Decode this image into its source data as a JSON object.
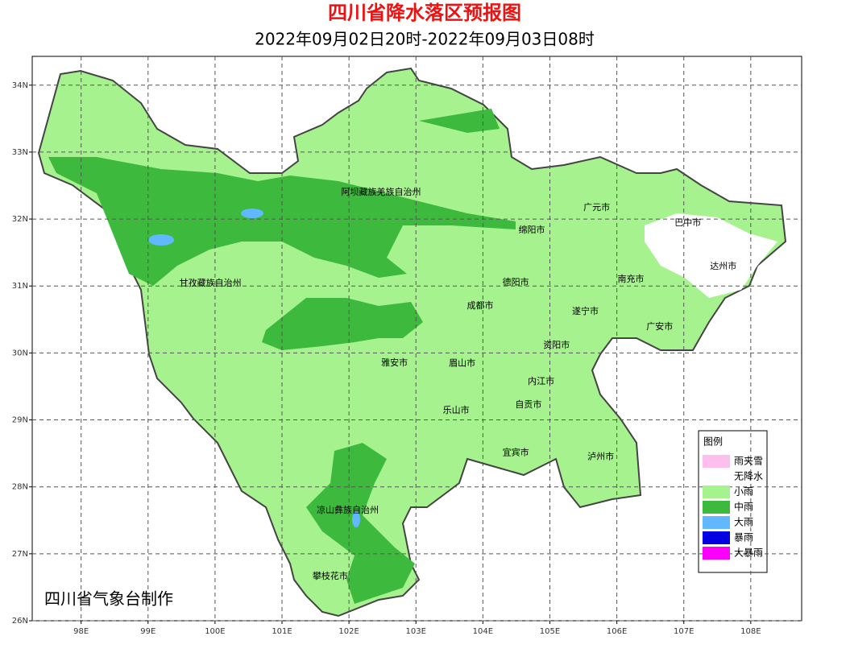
{
  "map": {
    "title": "四川省降水落区预报图",
    "subtitle": "2022年09月02日20时-2022年09月03日08时",
    "credit": "四川省气象台制作",
    "xlim": [
      97.27,
      108.76
    ],
    "ylim": [
      26,
      34.43
    ],
    "xticks": [
      {
        "value": 98,
        "label": "98E"
      },
      {
        "value": 99,
        "label": "99E"
      },
      {
        "value": 100,
        "label": "100E"
      },
      {
        "value": 101,
        "label": "101E"
      },
      {
        "value": 102,
        "label": "102E"
      },
      {
        "value": 103,
        "label": "103E"
      },
      {
        "value": 104,
        "label": "104E"
      },
      {
        "value": 105,
        "label": "105E"
      },
      {
        "value": 106,
        "label": "106E"
      },
      {
        "value": 107,
        "label": "107E"
      },
      {
        "value": 108,
        "label": "108E"
      }
    ],
    "yticks": [
      {
        "value": 26,
        "label": "26N"
      },
      {
        "value": 27,
        "label": "27N"
      },
      {
        "value": 28,
        "label": "28N"
      },
      {
        "value": 29,
        "label": "29N"
      },
      {
        "value": 30,
        "label": "30N"
      },
      {
        "value": 31,
        "label": "31N"
      },
      {
        "value": 32,
        "label": "32N"
      },
      {
        "value": 33,
        "label": "33N"
      },
      {
        "value": 34,
        "label": "34N"
      }
    ],
    "grid": true,
    "places": [
      {
        "name": "阿坝藏族羌族自治州",
        "lon": 102.48,
        "lat": 32.4
      },
      {
        "name": "甘孜藏族自治州",
        "lon": 99.93,
        "lat": 31.04
      },
      {
        "name": "广元市",
        "lon": 105.7,
        "lat": 32.17
      },
      {
        "name": "巴中市",
        "lon": 107.06,
        "lat": 31.94
      },
      {
        "name": "绵阳市",
        "lon": 104.73,
        "lat": 31.83
      },
      {
        "name": "达州市",
        "lon": 107.59,
        "lat": 31.29
      },
      {
        "name": "德阳市",
        "lon": 104.49,
        "lat": 31.05
      },
      {
        "name": "南充市",
        "lon": 106.21,
        "lat": 31.1
      },
      {
        "name": "成都市",
        "lon": 103.96,
        "lat": 30.7
      },
      {
        "name": "遂宁市",
        "lon": 105.53,
        "lat": 30.62
      },
      {
        "name": "广安市",
        "lon": 106.64,
        "lat": 30.39
      },
      {
        "name": "资阳市",
        "lon": 105.1,
        "lat": 30.11
      },
      {
        "name": "雅安市",
        "lon": 102.68,
        "lat": 29.85
      },
      {
        "name": "眉山市",
        "lon": 103.69,
        "lat": 29.84
      },
      {
        "name": "内江市",
        "lon": 104.87,
        "lat": 29.57
      },
      {
        "name": "自贡市",
        "lon": 104.68,
        "lat": 29.22
      },
      {
        "name": "乐山市",
        "lon": 103.6,
        "lat": 29.14
      },
      {
        "name": "宜宾市",
        "lon": 104.49,
        "lat": 28.51
      },
      {
        "name": "泸州市",
        "lon": 105.76,
        "lat": 28.45
      },
      {
        "name": "凉山彝族自治州",
        "lon": 101.98,
        "lat": 27.65
      },
      {
        "name": "攀枝花市",
        "lon": 101.72,
        "lat": 26.66
      }
    ],
    "legend": {
      "title": "图例",
      "items": [
        {
          "name": "雨夹雪",
          "color": "#ffbfee"
        },
        {
          "name": "无降水",
          "color": "#ffffff"
        },
        {
          "name": "小雨",
          "color": "#a6f28e"
        },
        {
          "name": "中雨",
          "color": "#3db93d"
        },
        {
          "name": "大雨",
          "color": "#61b8ff"
        },
        {
          "name": "暴雨",
          "color": "#0000e1"
        },
        {
          "name": "大暴雨",
          "color": "#fa00fa"
        }
      ]
    }
  }
}
